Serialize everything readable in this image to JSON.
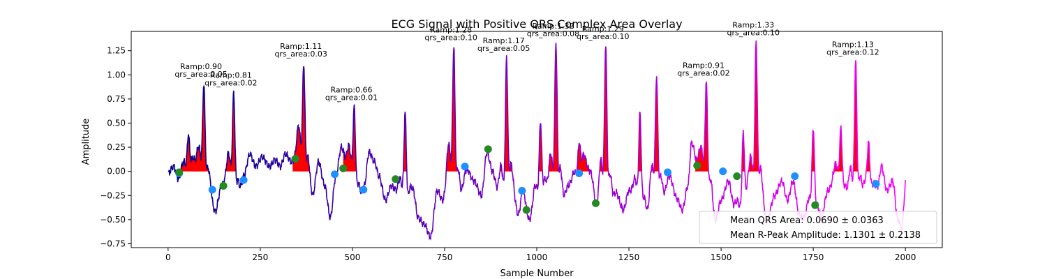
{
  "chart_data": {
    "type": "line",
    "title": "ECG Signal with Positive QRS Complex Area Overlay",
    "xlabel": "Sample Number",
    "ylabel": "Amplitude",
    "xlim": [
      -100,
      2100
    ],
    "ylim": [
      -0.79,
      1.45
    ],
    "xticks": [
      0,
      250,
      500,
      750,
      1000,
      1250,
      1500,
      1750,
      2000
    ],
    "yticks": [
      -0.75,
      -0.5,
      -0.25,
      0.0,
      0.25,
      0.5,
      0.75,
      1.0,
      1.25
    ],
    "ytick_labels": [
      "−0.75",
      "−0.50",
      "−0.25",
      "0.00",
      "0.25",
      "0.50",
      "0.75",
      "1.00",
      "1.25"
    ],
    "grid": false,
    "legend_position": "bottom-right",
    "legend": [
      "Mean QRS Area: 0.0690 ± 0.0363",
      "Mean R-Peak Amplitude: 1.1301 ± 0.2138"
    ],
    "colors": {
      "signal_start": "#00008b",
      "signal_end": "#ff00ff",
      "qrs_fill": "#ff0000",
      "onset_marker": "#1e90ff",
      "offset_marker": "#228b22"
    },
    "annotations": [
      {
        "x": 97,
        "y": 0.9,
        "ramp": "Ramp:0.90",
        "area": "qrs_area:0.05"
      },
      {
        "x": 178,
        "y": 0.81,
        "ramp": "Ramp:0.81",
        "area": "qrs_area:0.02"
      },
      {
        "x": 368,
        "y": 1.11,
        "ramp": "Ramp:1.11",
        "area": "qrs_area:0.03"
      },
      {
        "x": 505,
        "y": 0.66,
        "ramp": "Ramp:0.66",
        "area": "qrs_area:0.01"
      },
      {
        "x": 775,
        "y": 1.28,
        "ramp": "Ramp:1.28",
        "area": "qrs_area:0.10"
      },
      {
        "x": 918,
        "y": 1.17,
        "ramp": "Ramp:1.17",
        "area": "qrs_area:0.05"
      },
      {
        "x": 1052,
        "y": 1.32,
        "ramp": "Ramp:1.32",
        "area": "qrs_area:0.08"
      },
      {
        "x": 1187,
        "y": 1.29,
        "ramp": "Ramp:1.29",
        "area": "qrs_area:0.10"
      },
      {
        "x": 1460,
        "y": 0.91,
        "ramp": "Ramp:0.91",
        "area": "qrs_area:0.02"
      },
      {
        "x": 1595,
        "y": 1.33,
        "ramp": "Ramp:1.33",
        "area": "qrs_area:0.10"
      },
      {
        "x": 1865,
        "y": 1.13,
        "ramp": "Ramp:1.13",
        "area": "qrs_area:0.12"
      }
    ],
    "r_peaks": [
      {
        "x": 55,
        "y": 0.38
      },
      {
        "x": 97,
        "y": 0.9
      },
      {
        "x": 178,
        "y": 0.81
      },
      {
        "x": 368,
        "y": 1.11
      },
      {
        "x": 505,
        "y": 0.66
      },
      {
        "x": 643,
        "y": 0.6
      },
      {
        "x": 775,
        "y": 1.28
      },
      {
        "x": 918,
        "y": 1.17
      },
      {
        "x": 1010,
        "y": 0.52
      },
      {
        "x": 1052,
        "y": 1.32
      },
      {
        "x": 1115,
        "y": 0.3
      },
      {
        "x": 1187,
        "y": 1.29
      },
      {
        "x": 1280,
        "y": 0.6
      },
      {
        "x": 1325,
        "y": 0.98
      },
      {
        "x": 1460,
        "y": 0.91
      },
      {
        "x": 1560,
        "y": 0.4
      },
      {
        "x": 1595,
        "y": 1.33
      },
      {
        "x": 1750,
        "y": 0.45
      },
      {
        "x": 1825,
        "y": 0.44
      },
      {
        "x": 1865,
        "y": 1.13
      },
      {
        "x": 1900,
        "y": 0.3
      }
    ],
    "onset_points": [
      {
        "x": 30,
        "y": -0.02
      },
      {
        "x": 120,
        "y": -0.19
      },
      {
        "x": 205,
        "y": -0.09
      },
      {
        "x": 452,
        "y": -0.03
      },
      {
        "x": 530,
        "y": -0.19
      },
      {
        "x": 805,
        "y": 0.05
      },
      {
        "x": 960,
        "y": -0.2
      },
      {
        "x": 1115,
        "y": -0.02
      },
      {
        "x": 1355,
        "y": -0.01
      },
      {
        "x": 1505,
        "y": 0.0
      },
      {
        "x": 1700,
        "y": -0.05
      },
      {
        "x": 1920,
        "y": -0.13
      }
    ],
    "offset_points": [
      {
        "x": 30,
        "y": -0.01
      },
      {
        "x": 150,
        "y": -0.15
      },
      {
        "x": 345,
        "y": 0.13
      },
      {
        "x": 475,
        "y": 0.03
      },
      {
        "x": 617,
        "y": -0.08
      },
      {
        "x": 868,
        "y": 0.23
      },
      {
        "x": 972,
        "y": -0.4
      },
      {
        "x": 1160,
        "y": -0.33
      },
      {
        "x": 1435,
        "y": 0.06
      },
      {
        "x": 1543,
        "y": -0.05
      },
      {
        "x": 1755,
        "y": -0.35
      }
    ],
    "baseline_knots": [
      [
        0,
        -0.02
      ],
      [
        15,
        0.05
      ],
      [
        28,
        -0.08
      ],
      [
        45,
        0.0
      ],
      [
        70,
        0.05
      ],
      [
        88,
        -0.02
      ],
      [
        112,
        -0.2
      ],
      [
        128,
        -0.42
      ],
      [
        145,
        -0.15
      ],
      [
        162,
        -0.05
      ],
      [
        192,
        -0.3
      ],
      [
        205,
        -0.05
      ],
      [
        222,
        0.18
      ],
      [
        238,
        0.05
      ],
      [
        255,
        0.15
      ],
      [
        275,
        0.05
      ],
      [
        290,
        0.12
      ],
      [
        305,
        0.05
      ],
      [
        318,
        0.18
      ],
      [
        335,
        0.1
      ],
      [
        352,
        0.15
      ],
      [
        375,
        -0.1
      ],
      [
        392,
        -0.25
      ],
      [
        408,
        0.1
      ],
      [
        425,
        -0.15
      ],
      [
        440,
        -0.48
      ],
      [
        455,
        -0.05
      ],
      [
        470,
        0.25
      ],
      [
        485,
        0.1
      ],
      [
        520,
        -0.3
      ],
      [
        532,
        -0.15
      ],
      [
        545,
        0.2
      ],
      [
        560,
        0.1
      ],
      [
        572,
        -0.05
      ],
      [
        590,
        -0.3
      ],
      [
        605,
        -0.15
      ],
      [
        628,
        -0.25
      ],
      [
        650,
        -0.38
      ],
      [
        665,
        -0.2
      ],
      [
        678,
        -0.48
      ],
      [
        695,
        -0.55
      ],
      [
        712,
        -0.68
      ],
      [
        730,
        -0.2
      ],
      [
        745,
        -0.3
      ],
      [
        760,
        -0.1
      ],
      [
        790,
        -0.3
      ],
      [
        810,
        0.02
      ],
      [
        830,
        -0.1
      ],
      [
        850,
        -0.25
      ],
      [
        865,
        0.2
      ],
      [
        880,
        0.0
      ],
      [
        895,
        -0.2
      ],
      [
        910,
        -0.35
      ],
      [
        935,
        -0.2
      ],
      [
        950,
        -0.45
      ],
      [
        962,
        -0.2
      ],
      [
        980,
        -0.5
      ],
      [
        995,
        -0.3
      ],
      [
        1030,
        -0.2
      ],
      [
        1070,
        -0.3
      ],
      [
        1085,
        -0.15
      ],
      [
        1100,
        -0.1
      ],
      [
        1130,
        0.1
      ],
      [
        1145,
        0.0
      ],
      [
        1165,
        -0.4
      ],
      [
        1175,
        -0.25
      ],
      [
        1200,
        -0.35
      ],
      [
        1215,
        -0.22
      ],
      [
        1235,
        -0.4
      ],
      [
        1250,
        -0.2
      ],
      [
        1265,
        -0.25
      ],
      [
        1300,
        -0.45
      ],
      [
        1315,
        -0.2
      ],
      [
        1340,
        -0.3
      ],
      [
        1360,
        -0.05
      ],
      [
        1380,
        -0.28
      ],
      [
        1395,
        -0.4
      ],
      [
        1410,
        -0.15
      ],
      [
        1420,
        0.3
      ],
      [
        1435,
        0.1
      ],
      [
        1450,
        -0.05
      ],
      [
        1470,
        -0.3
      ],
      [
        1485,
        -0.5
      ],
      [
        1500,
        -0.3
      ],
      [
        1520,
        -0.1
      ],
      [
        1535,
        -0.35
      ],
      [
        1550,
        -0.45
      ],
      [
        1575,
        -0.25
      ],
      [
        1610,
        -0.3
      ],
      [
        1625,
        -0.5
      ],
      [
        1645,
        -0.25
      ],
      [
        1665,
        -0.1
      ],
      [
        1680,
        -0.3
      ],
      [
        1695,
        -0.1
      ],
      [
        1712,
        -0.45
      ],
      [
        1728,
        -0.5
      ],
      [
        1745,
        -0.35
      ],
      [
        1770,
        -0.5
      ],
      [
        1790,
        -0.2
      ],
      [
        1810,
        -0.05
      ],
      [
        1845,
        -0.3
      ],
      [
        1880,
        -0.35
      ],
      [
        1895,
        -0.1
      ],
      [
        1910,
        -0.2
      ],
      [
        1925,
        -0.15
      ],
      [
        1935,
        0.05
      ],
      [
        1950,
        -0.2
      ],
      [
        1965,
        -0.1
      ],
      [
        1980,
        -0.5
      ],
      [
        1990,
        -0.6
      ],
      [
        1997,
        -0.3
      ],
      [
        2000,
        -0.11
      ]
    ]
  }
}
